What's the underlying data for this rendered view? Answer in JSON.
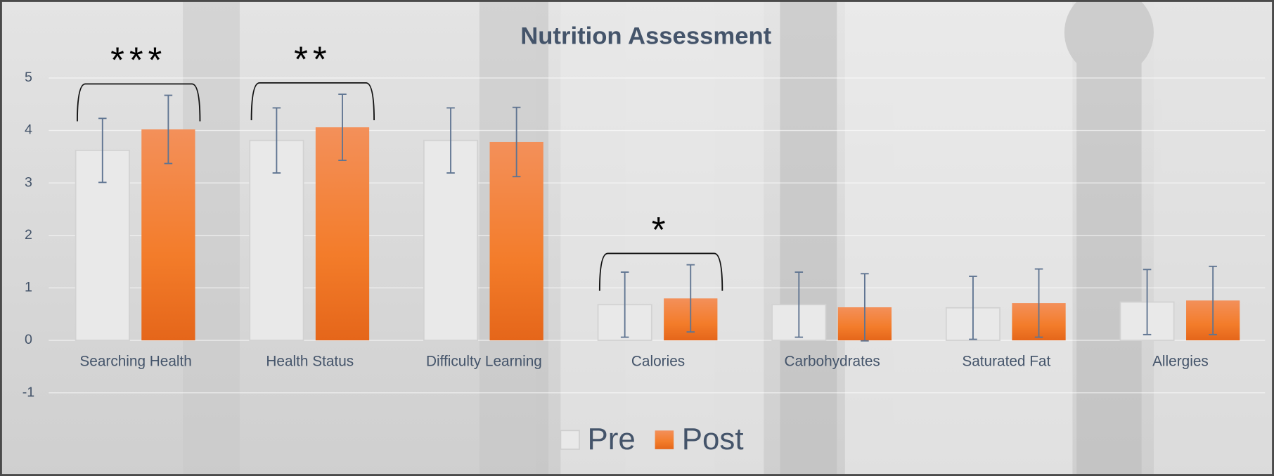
{
  "chart_data": {
    "type": "bar",
    "title": "Nutrition Assessment",
    "categories": [
      "Searching Health",
      "Health Status",
      "Difficulty Learning",
      "Calories",
      "Carbohydrates",
      "Saturated Fat",
      "Allergies"
    ],
    "series": [
      {
        "name": "Pre",
        "color": "#e9e9e9",
        "values": [
          3.62,
          3.81,
          3.81,
          0.68,
          0.68,
          0.62,
          0.73
        ],
        "errors": [
          0.61,
          0.62,
          0.62,
          0.62,
          0.62,
          0.6,
          0.62
        ]
      },
      {
        "name": "Post",
        "color": "#f07a2c",
        "values": [
          4.02,
          4.06,
          3.78,
          0.8,
          0.63,
          0.71,
          0.76
        ],
        "errors": [
          0.65,
          0.63,
          0.66,
          0.64,
          0.64,
          0.65,
          0.65
        ]
      }
    ],
    "ylim": [
      -1.5,
      5.5
    ],
    "yticks": [
      -1,
      0,
      1,
      2,
      3,
      4,
      5
    ],
    "grid": true,
    "legend": "bottom",
    "annotations": [
      {
        "label": "***",
        "category": "Searching Health"
      },
      {
        "label": "**",
        "category": "Health Status"
      },
      {
        "label": "*",
        "category": "Calories"
      }
    ]
  }
}
